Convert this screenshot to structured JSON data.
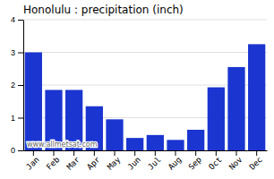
{
  "chart_data": {
    "type": "bar",
    "title": "Honolulu : precipitation (inch)",
    "categories": [
      "Jan",
      "Feb",
      "Mar",
      "Apr",
      "May",
      "Jun",
      "Jul",
      "Aug",
      "Sep",
      "Oct",
      "Nov",
      "Dec"
    ],
    "values": [
      3.0,
      1.85,
      1.85,
      1.35,
      0.95,
      0.38,
      0.47,
      0.32,
      0.63,
      1.93,
      2.55,
      3.25
    ],
    "color": "#1a35d0",
    "ylim": [
      0,
      4
    ],
    "yticks": [
      0,
      1,
      2,
      3,
      4
    ],
    "grid": true,
    "annotation": "www.allmetsat.com"
  }
}
